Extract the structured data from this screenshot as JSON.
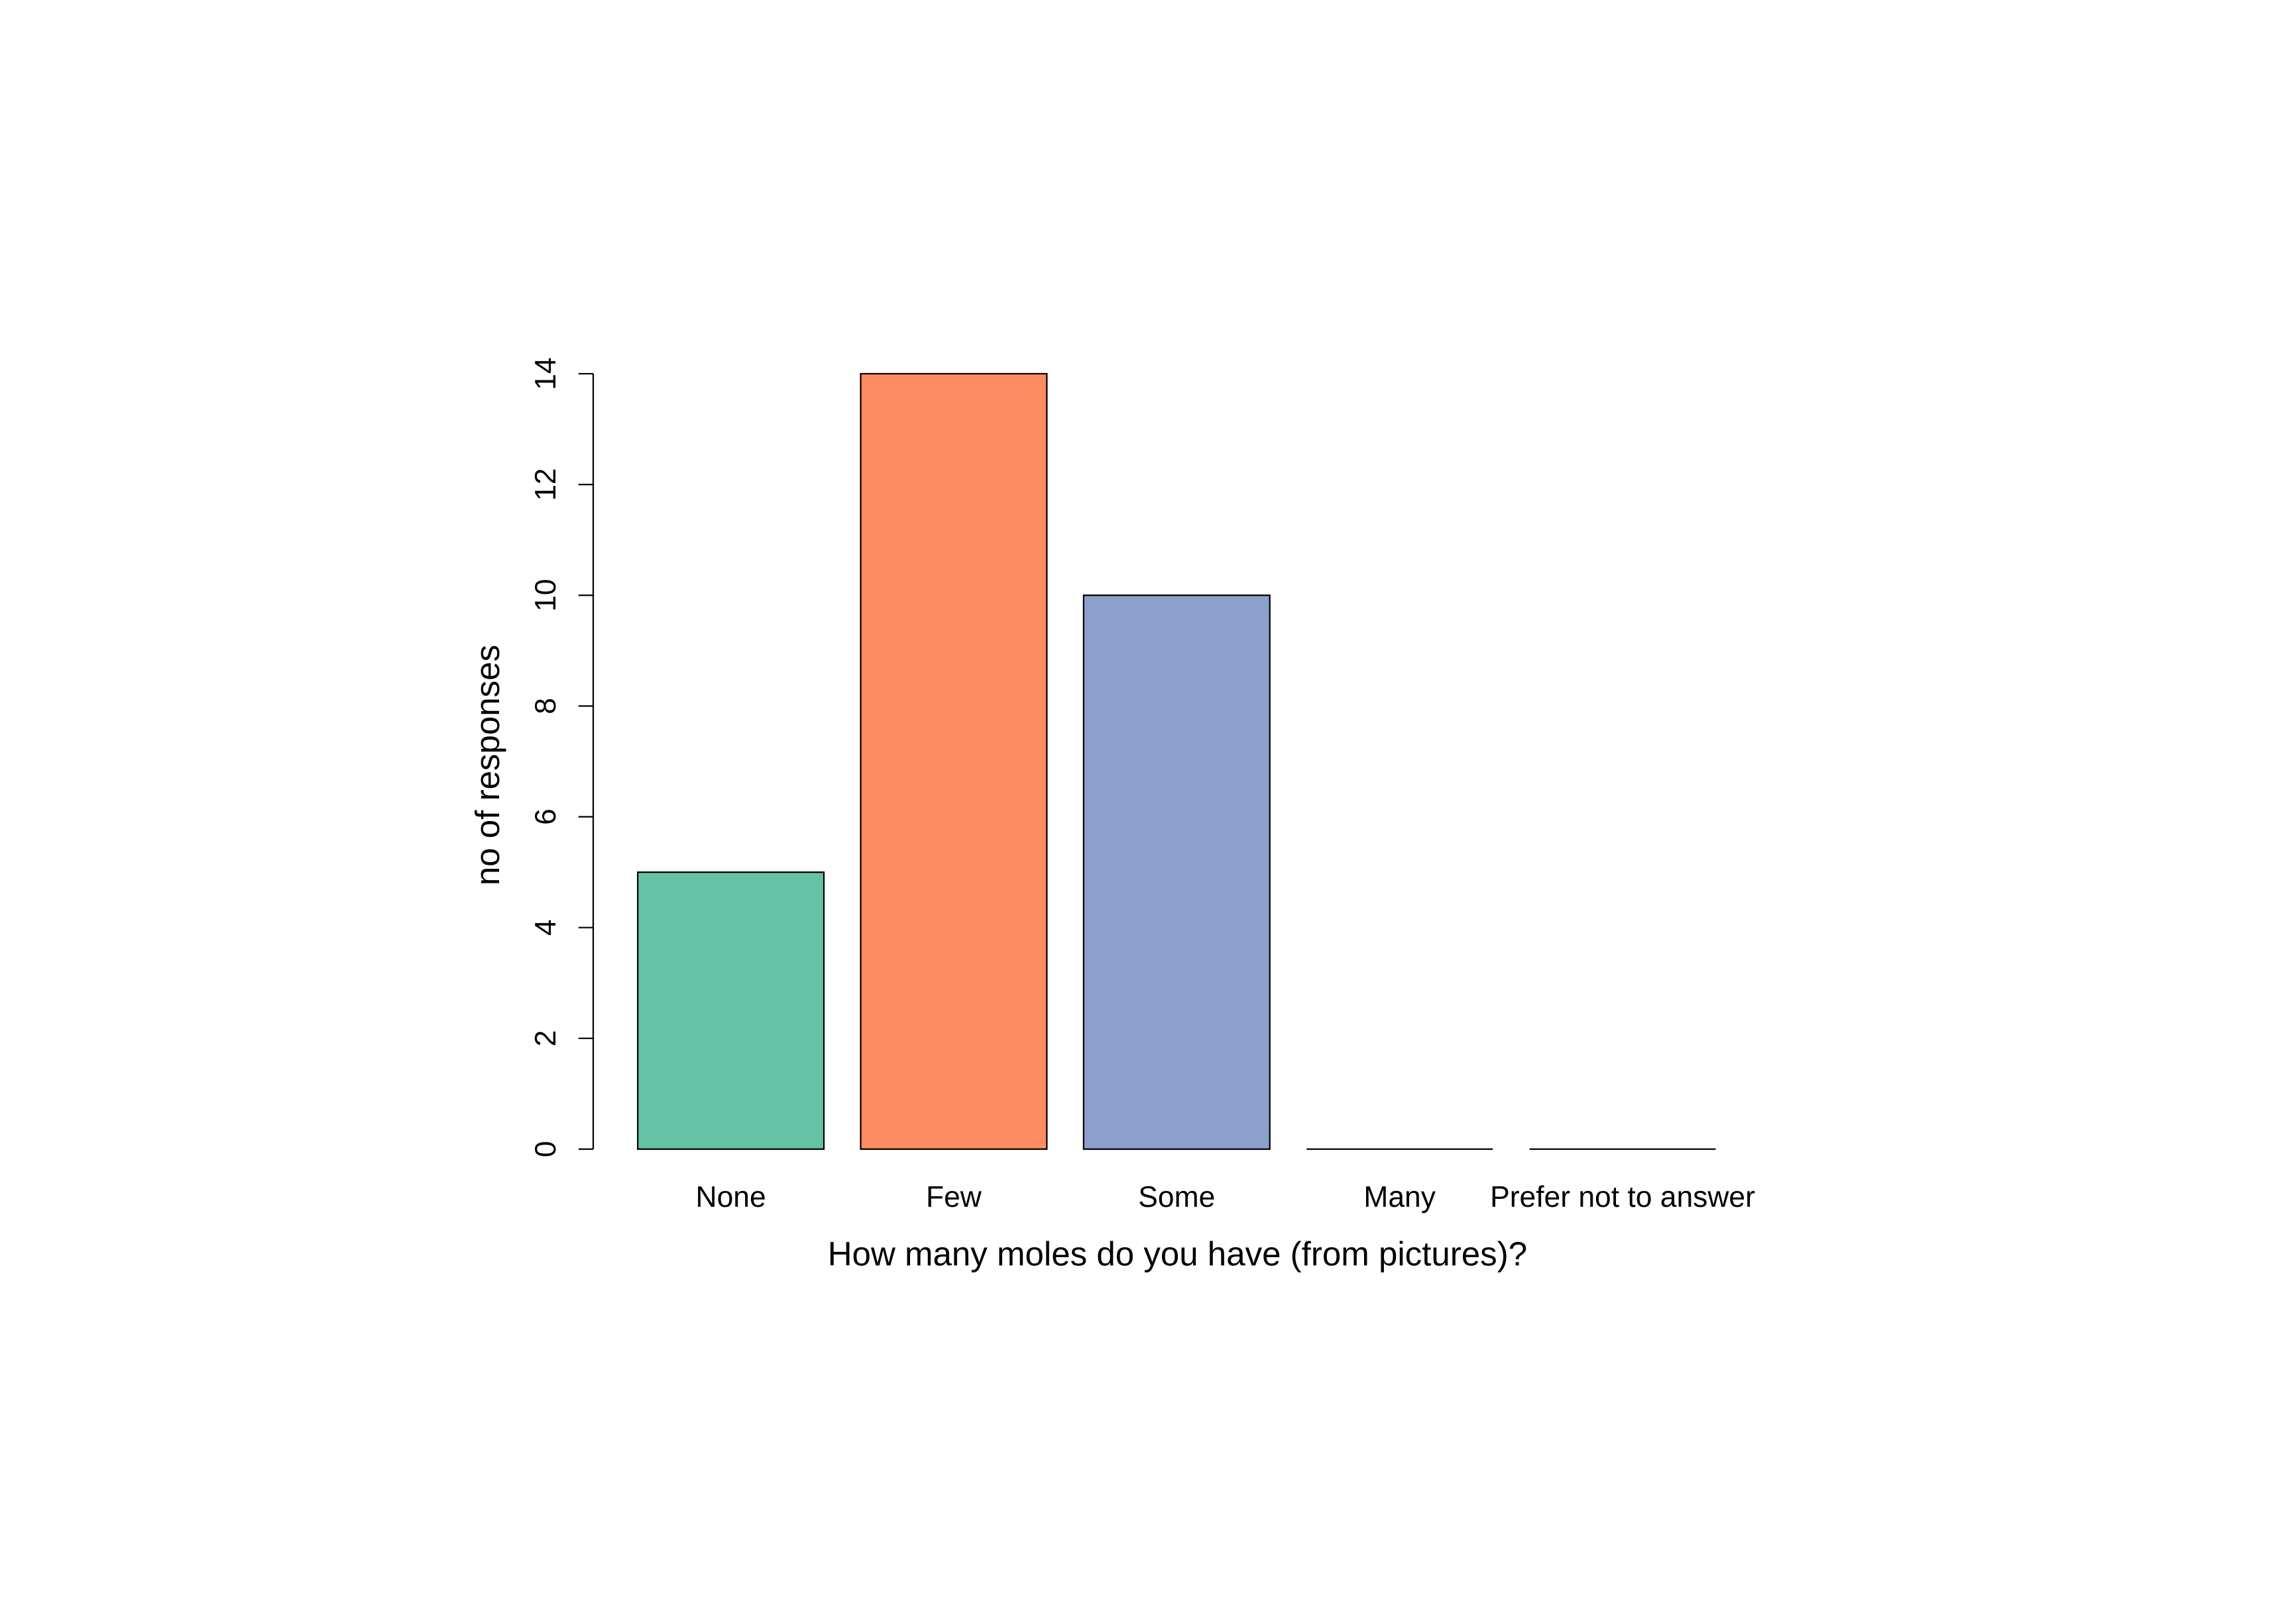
{
  "chart_data": {
    "type": "bar",
    "xlabel": "How many moles do you have (from pictures)?",
    "ylabel": "no of responses",
    "categories": [
      "None",
      "Few",
      "Some",
      "Many",
      "Prefer not to answer"
    ],
    "values": [
      5,
      14,
      10,
      0,
      0
    ],
    "colors": [
      "#66c2a5",
      "#fc8d62",
      "#8da0cb",
      "#e78ac3",
      "#a6d854"
    ],
    "ylim": [
      0,
      14
    ],
    "yticks": [
      0,
      2,
      4,
      6,
      8,
      10,
      12,
      14
    ]
  }
}
